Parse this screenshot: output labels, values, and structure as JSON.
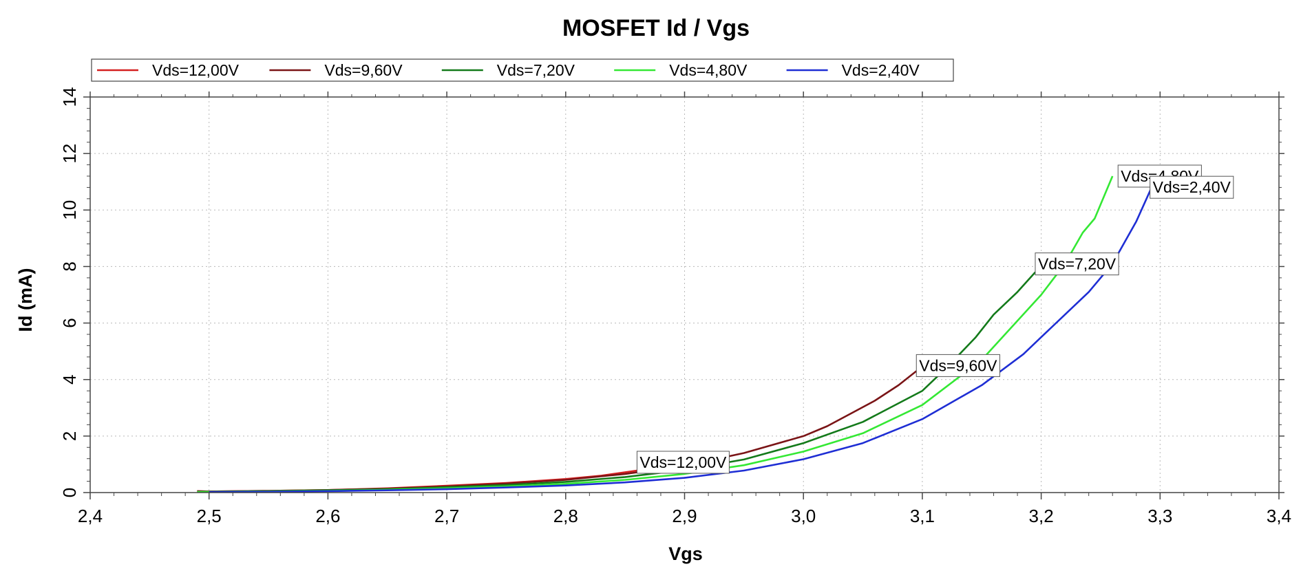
{
  "chart_data": {
    "type": "line",
    "title": "MOSFET Id / Vgs",
    "xlabel": "Vgs",
    "ylabel": "Id (mA)",
    "xlim": [
      2.4,
      3.4
    ],
    "ylim": [
      0,
      14
    ],
    "x_ticks": [
      "2,4",
      "2,5",
      "2,6",
      "2,7",
      "2,8",
      "2,9",
      "3,0",
      "3,1",
      "3,2",
      "3,3",
      "3,4"
    ],
    "y_ticks": [
      "0",
      "2",
      "4",
      "6",
      "8",
      "10",
      "12",
      "14"
    ],
    "grid": true,
    "legend_position": "top",
    "series": [
      {
        "name": "Vds=12,00V",
        "color": "#d42020",
        "x": [
          2.49,
          2.5,
          2.55,
          2.6,
          2.65,
          2.7,
          2.75,
          2.8,
          2.83,
          2.86
        ],
        "y": [
          0.05,
          0.04,
          0.06,
          0.09,
          0.15,
          0.24,
          0.34,
          0.48,
          0.6,
          0.78
        ],
        "callout": "Vds=12,00V"
      },
      {
        "name": "Vds=9,60V",
        "color": "#7a1416",
        "x": [
          2.49,
          2.5,
          2.55,
          2.6,
          2.65,
          2.7,
          2.75,
          2.8,
          2.85,
          2.9,
          2.95,
          3.0,
          3.02,
          3.04,
          3.06,
          3.08,
          3.095
        ],
        "y": [
          0.05,
          0.04,
          0.06,
          0.09,
          0.14,
          0.22,
          0.32,
          0.45,
          0.66,
          0.95,
          1.4,
          2.0,
          2.35,
          2.8,
          3.25,
          3.8,
          4.3
        ],
        "callout": "Vds=9,60V"
      },
      {
        "name": "Vds=7,20V",
        "color": "#137a1a",
        "x": [
          2.49,
          2.5,
          2.55,
          2.6,
          2.65,
          2.7,
          2.75,
          2.8,
          2.85,
          2.9,
          2.95,
          3.0,
          3.05,
          3.1,
          3.12,
          3.145,
          3.16,
          3.18,
          3.195
        ],
        "y": [
          0.03,
          0.03,
          0.05,
          0.08,
          0.12,
          0.19,
          0.27,
          0.38,
          0.55,
          0.8,
          1.17,
          1.75,
          2.5,
          3.6,
          4.4,
          5.5,
          6.3,
          7.1,
          7.8
        ],
        "callout": "Vds=7,20V"
      },
      {
        "name": "Vds=4,80V",
        "color": "#34e834",
        "x": [
          2.49,
          2.5,
          2.55,
          2.6,
          2.65,
          2.7,
          2.75,
          2.8,
          2.85,
          2.9,
          2.95,
          3.0,
          3.05,
          3.1,
          3.15,
          3.2,
          3.22,
          3.235,
          3.245,
          3.26
        ],
        "y": [
          0.02,
          0.02,
          0.04,
          0.06,
          0.1,
          0.15,
          0.22,
          0.31,
          0.45,
          0.66,
          0.97,
          1.45,
          2.1,
          3.1,
          4.7,
          7.0,
          8.1,
          9.2,
          9.7,
          11.2
        ],
        "callout": "Vds=4,80V"
      },
      {
        "name": "Vds=2,40V",
        "color": "#1e2ed4",
        "x": [
          2.5,
          2.55,
          2.6,
          2.65,
          2.7,
          2.75,
          2.8,
          2.85,
          2.9,
          2.95,
          3.0,
          3.05,
          3.1,
          3.15,
          3.185,
          3.2,
          3.22,
          3.24,
          3.26,
          3.28,
          3.295
        ],
        "y": [
          0.02,
          0.03,
          0.05,
          0.08,
          0.12,
          0.18,
          0.25,
          0.36,
          0.52,
          0.78,
          1.18,
          1.75,
          2.6,
          3.8,
          4.9,
          5.5,
          6.3,
          7.1,
          8.1,
          9.6,
          11.0
        ],
        "callout": "Vds=2,40V"
      }
    ]
  }
}
